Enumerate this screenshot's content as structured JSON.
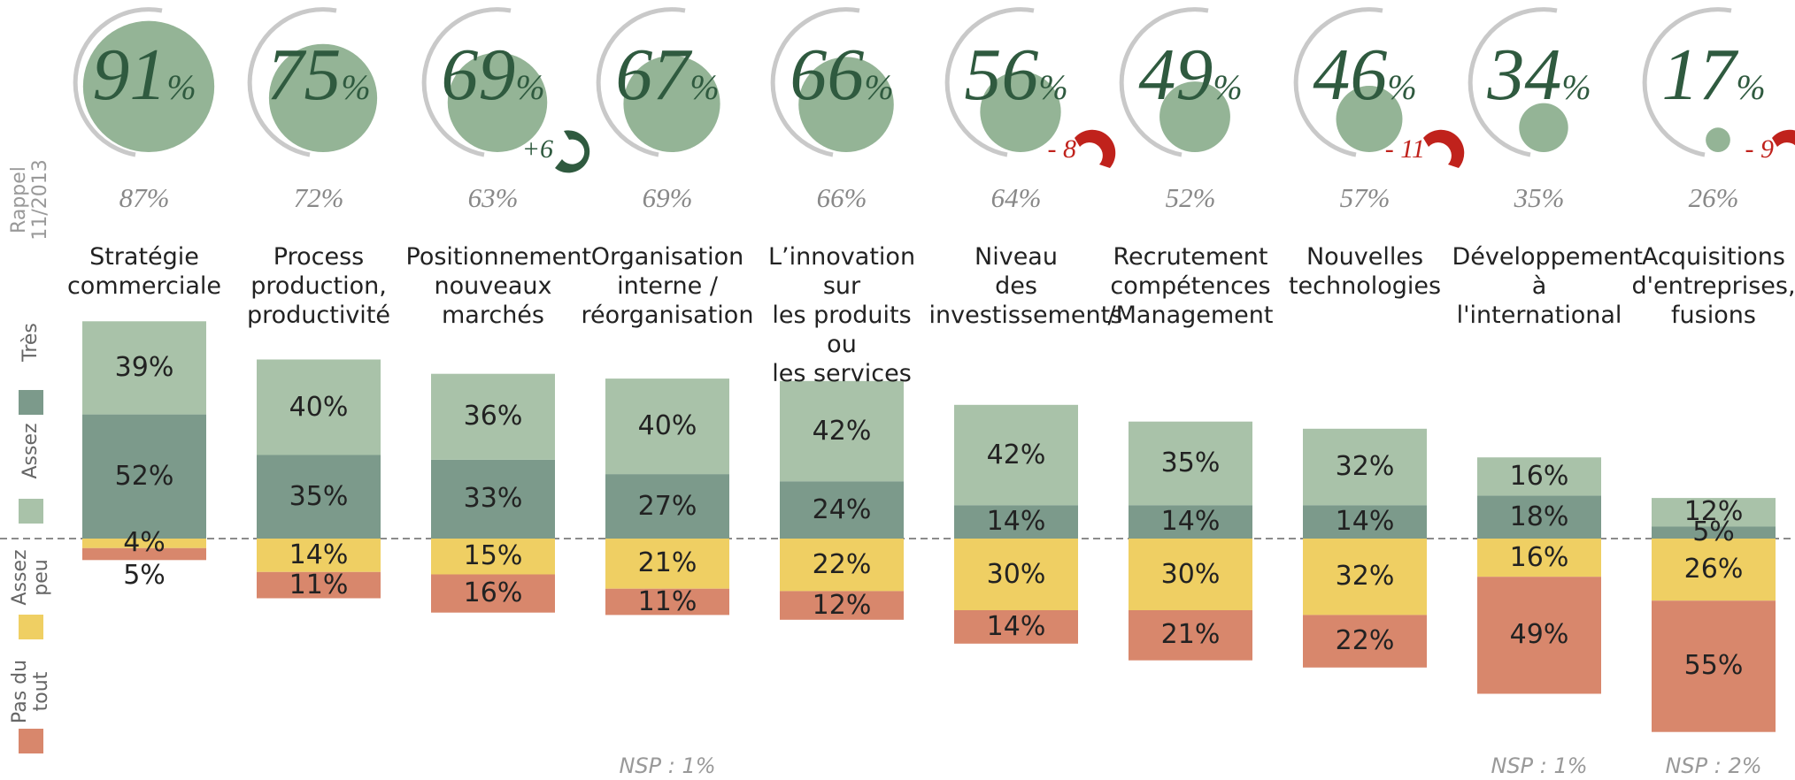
{
  "chart_data": {
    "type": "diverging_bar",
    "categories": [
      "Stratégie\ncommerciale",
      "Process\nproduction,\nproductivité",
      "Positionnement\nnouveaux\nmarchés",
      "Organisation\ninterne /\nréorganisation",
      "L’innovation sur\nles produits ou\nles services",
      "Niveau\ndes\ninvestissements",
      "Recrutement\ncompétences\n/Management",
      "Nouvelles\ntechnologies",
      "Développement\nà l'international",
      "Acquisitions\nd'entreprises,\nfusions"
    ],
    "series": [
      {
        "name": "Très",
        "color": "#7c9a8b",
        "side": "positive",
        "values": [
          52,
          35,
          33,
          27,
          24,
          14,
          14,
          14,
          18,
          5
        ],
        "value_labels": [
          "52%",
          "35%",
          "33%",
          "27%",
          "24%",
          "14%",
          "14%",
          "14%",
          "18%",
          "5%"
        ]
      },
      {
        "name": "Assez",
        "color": "#a9c2a9",
        "side": "positive",
        "values": [
          39,
          40,
          36,
          40,
          42,
          42,
          35,
          32,
          16,
          12
        ],
        "value_labels": [
          "39%",
          "40%",
          "36%",
          "40%",
          "42%",
          "42%",
          "35%",
          "32%",
          "16%",
          "12%"
        ]
      },
      {
        "name": "Assez peu",
        "color": "#efcf63",
        "side": "negative",
        "values": [
          4,
          14,
          15,
          21,
          22,
          30,
          30,
          32,
          16,
          26
        ],
        "value_labels": [
          "4%",
          "14%",
          "15%",
          "21%",
          "22%",
          "30%",
          "30%",
          "32%",
          "16%",
          "26%"
        ]
      },
      {
        "name": "Pas du tout",
        "color": "#d8876c",
        "side": "negative",
        "values": [
          5,
          11,
          16,
          11,
          12,
          14,
          21,
          22,
          49,
          55
        ],
        "value_labels": [
          "5%",
          "11%",
          "16%",
          "11%",
          "12%",
          "14%",
          "21%",
          "22%",
          "49%",
          "55%"
        ]
      }
    ],
    "totals": {
      "color": "#94b496",
      "values": [
        91,
        75,
        69,
        67,
        66,
        56,
        49,
        46,
        34,
        17
      ],
      "value_labels": [
        "91%",
        "75%",
        "69%",
        "67%",
        "66%",
        "56%",
        "49%",
        "46%",
        "34%",
        "17%"
      ]
    },
    "previous_label": "Rappel\n11/2013",
    "previous": {
      "values": [
        87,
        72,
        63,
        69,
        66,
        64,
        52,
        57,
        35,
        26
      ],
      "value_labels": [
        "87%",
        "72%",
        "63%",
        "69%",
        "66%",
        "64%",
        "52%",
        "57%",
        "35%",
        "26%"
      ]
    },
    "changes": {
      "values": [
        null,
        null,
        6,
        null,
        null,
        -8,
        null,
        -11,
        null,
        -9
      ],
      "value_labels": [
        null,
        null,
        "+6",
        null,
        null,
        "- 8",
        null,
        "- 11",
        null,
        "- 9"
      ]
    },
    "notes": [
      null,
      null,
      null,
      "NSP : 1%",
      null,
      null,
      null,
      null,
      "NSP : 1%",
      "NSP : 2%"
    ]
  }
}
